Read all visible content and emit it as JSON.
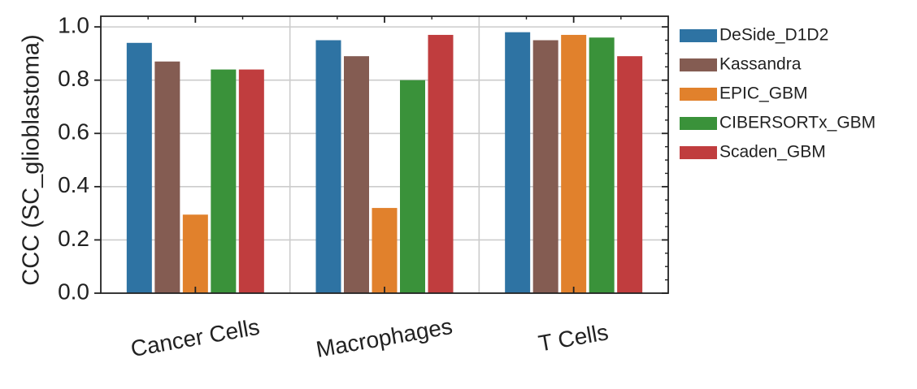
{
  "chart_data": {
    "type": "bar",
    "title": "",
    "xlabel": "",
    "ylabel": "CCC (SC_glioblastoma)",
    "ylim": [
      0,
      1.04
    ],
    "yticks": [
      "0.0",
      "0.2",
      "0.4",
      "0.6",
      "0.8",
      "1.0"
    ],
    "ytick_values": [
      0,
      0.2,
      0.4,
      0.6,
      0.8,
      1.0
    ],
    "grid": true,
    "legend_position": "outside-right",
    "categories": [
      "Cancer Cells",
      "Macrophages",
      "T Cells"
    ],
    "series": [
      {
        "name": "DeSide_D1D2",
        "color": "#2e73a3",
        "values": [
          0.94,
          0.95,
          0.98
        ]
      },
      {
        "name": "Kassandra",
        "color": "#845c52",
        "values": [
          0.87,
          0.89,
          0.95
        ]
      },
      {
        "name": "EPIC_GBM",
        "color": "#e1812c",
        "values": [
          0.295,
          0.32,
          0.97
        ]
      },
      {
        "name": "CIBERSORTx_GBM",
        "color": "#3a923a",
        "values": [
          0.84,
          0.8,
          0.96
        ]
      },
      {
        "name": "Scaden_GBM",
        "color": "#c03d3e",
        "values": [
          0.84,
          0.97,
          0.89
        ]
      }
    ]
  }
}
